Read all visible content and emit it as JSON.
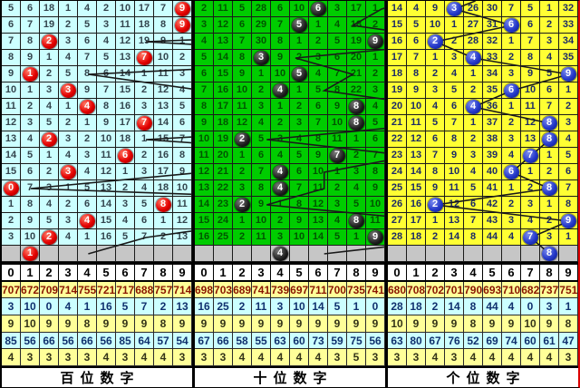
{
  "chart_data": {
    "type": "table",
    "description": "lottery-digit-trend-chart-three-panels",
    "digit_axis": [
      "0",
      "1",
      "2",
      "3",
      "4",
      "5",
      "6",
      "7",
      "8",
      "9"
    ],
    "panels": [
      {
        "id": "hundreds",
        "label": "百位数字",
        "ball_style": "red",
        "colors": {
          "cell_bg": "#ccffff",
          "cell_text": "#33444d"
        },
        "stub_col": 6.7,
        "rows": [
          [
            "5",
            "6",
            "18",
            "1",
            "4",
            "2",
            "10",
            "17",
            "7",
            ""
          ],
          [
            "6",
            "7",
            "19",
            "2",
            "5",
            "3",
            "11",
            "18",
            "8",
            ""
          ],
          [
            "7",
            "8",
            "",
            "3",
            "6",
            "4",
            "12",
            "19",
            "9",
            "1"
          ],
          [
            "8",
            "9",
            "1",
            "4",
            "7",
            "5",
            "13",
            "",
            "10",
            "2"
          ],
          [
            "9",
            "",
            "2",
            "5",
            "8",
            "6",
            "14",
            "1",
            "11",
            "3"
          ],
          [
            "10",
            "1",
            "3",
            "",
            "9",
            "7",
            "15",
            "2",
            "12",
            "4"
          ],
          [
            "11",
            "2",
            "4",
            "1",
            "",
            "8",
            "16",
            "3",
            "13",
            "5"
          ],
          [
            "12",
            "3",
            "5",
            "2",
            "1",
            "9",
            "17",
            "",
            "14",
            "6"
          ],
          [
            "13",
            "4",
            "",
            "3",
            "2",
            "10",
            "18",
            "1",
            "15",
            "7"
          ],
          [
            "14",
            "5",
            "1",
            "4",
            "3",
            "11",
            "",
            "2",
            "16",
            "8"
          ],
          [
            "15",
            "6",
            "2",
            "",
            "4",
            "12",
            "1",
            "3",
            "17",
            "9"
          ],
          [
            "",
            "7",
            "3",
            "1",
            "5",
            "13",
            "2",
            "4",
            "18",
            "10"
          ],
          [
            "1",
            "8",
            "4",
            "2",
            "6",
            "14",
            "3",
            "5",
            "",
            "11"
          ],
          [
            "2",
            "9",
            "5",
            "3",
            "",
            "15",
            "4",
            "6",
            "1",
            "12"
          ],
          [
            "3",
            "10",
            "",
            "4",
            "1",
            "16",
            "5",
            "7",
            "2",
            "13"
          ]
        ],
        "balls": [
          9,
          9,
          2,
          7,
          1,
          3,
          4,
          7,
          2,
          6,
          3,
          0,
          8,
          4,
          2
        ],
        "gray_ball_col": 1,
        "stats": [
          [
            "707",
            "672",
            "709",
            "714",
            "755",
            "721",
            "717",
            "688",
            "757",
            "714"
          ],
          [
            "3",
            "10",
            "0",
            "4",
            "1",
            "16",
            "5",
            "7",
            "2",
            "13"
          ],
          [
            "9",
            "10",
            "9",
            "9",
            "8",
            "9",
            "9",
            "9",
            "8",
            "9"
          ],
          [
            "85",
            "56",
            "66",
            "56",
            "66",
            "56",
            "85",
            "64",
            "57",
            "54"
          ],
          [
            "4",
            "3",
            "3",
            "3",
            "3",
            "4",
            "3",
            "4",
            "4",
            "3"
          ]
        ]
      },
      {
        "id": "tens",
        "label": "十位数字",
        "ball_style": "black",
        "colors": {
          "cell_bg": "#00cc00",
          "cell_text": "#005500"
        },
        "stub_col": 7.5,
        "rows": [
          [
            "2",
            "11",
            "5",
            "28",
            "6",
            "10",
            "",
            "3",
            "17",
            "1"
          ],
          [
            "3",
            "12",
            "6",
            "29",
            "7",
            "",
            "1",
            "4",
            "18",
            "2"
          ],
          [
            "4",
            "13",
            "7",
            "30",
            "8",
            "1",
            "2",
            "5",
            "19",
            ""
          ],
          [
            "5",
            "14",
            "8",
            "",
            "9",
            "2",
            "3",
            "6",
            "20",
            "1"
          ],
          [
            "6",
            "15",
            "9",
            "1",
            "10",
            "",
            "4",
            "7",
            "21",
            "2"
          ],
          [
            "7",
            "16",
            "10",
            "2",
            "",
            "1",
            "5",
            "8",
            "22",
            "3"
          ],
          [
            "8",
            "17",
            "11",
            "3",
            "1",
            "2",
            "6",
            "9",
            "",
            "4"
          ],
          [
            "9",
            "18",
            "12",
            "4",
            "2",
            "3",
            "7",
            "10",
            "",
            "5"
          ],
          [
            "10",
            "19",
            "",
            "5",
            "3",
            "4",
            "8",
            "11",
            "1",
            "6"
          ],
          [
            "11",
            "20",
            "1",
            "6",
            "4",
            "5",
            "9",
            "",
            "2",
            "7"
          ],
          [
            "12",
            "21",
            "2",
            "7",
            "",
            "6",
            "10",
            "1",
            "3",
            "8"
          ],
          [
            "13",
            "22",
            "3",
            "8",
            "",
            "7",
            "11",
            "2",
            "4",
            "9"
          ],
          [
            "14",
            "23",
            "",
            "9",
            "1",
            "8",
            "12",
            "3",
            "5",
            "10"
          ],
          [
            "15",
            "24",
            "1",
            "10",
            "2",
            "9",
            "13",
            "4",
            "",
            "11"
          ],
          [
            "16",
            "25",
            "2",
            "11",
            "3",
            "10",
            "14",
            "5",
            "1",
            ""
          ]
        ],
        "balls": [
          6,
          5,
          9,
          3,
          5,
          4,
          8,
          8,
          2,
          7,
          4,
          4,
          2,
          8,
          9
        ],
        "gray_ball_col": 4,
        "stats": [
          [
            "698",
            "703",
            "689",
            "741",
            "739",
            "697",
            "711",
            "700",
            "735",
            "741"
          ],
          [
            "16",
            "25",
            "2",
            "11",
            "3",
            "10",
            "14",
            "5",
            "1",
            "0"
          ],
          [
            "9",
            "9",
            "9",
            "9",
            "9",
            "9",
            "9",
            "9",
            "9",
            "9"
          ],
          [
            "67",
            "66",
            "58",
            "55",
            "63",
            "60",
            "73",
            "59",
            "75",
            "56"
          ],
          [
            "3",
            "3",
            "4",
            "4",
            "4",
            "4",
            "4",
            "3",
            "5",
            "3"
          ]
        ]
      },
      {
        "id": "units",
        "label": "个位数字",
        "ball_style": "blue",
        "colors": {
          "cell_bg": "#ffff33",
          "cell_text": "#1b2a66"
        },
        "stub_col": 4.6,
        "rows": [
          [
            "14",
            "4",
            "9",
            "",
            "26",
            "30",
            "7",
            "5",
            "1",
            "32"
          ],
          [
            "15",
            "5",
            "10",
            "1",
            "27",
            "31",
            "",
            "6",
            "2",
            "33"
          ],
          [
            "16",
            "6",
            "",
            "2",
            "28",
            "32",
            "1",
            "7",
            "3",
            "34"
          ],
          [
            "17",
            "7",
            "1",
            "3",
            "",
            "33",
            "2",
            "8",
            "4",
            "35"
          ],
          [
            "18",
            "8",
            "2",
            "4",
            "1",
            "34",
            "3",
            "9",
            "5",
            ""
          ],
          [
            "19",
            "9",
            "3",
            "5",
            "2",
            "35",
            "",
            "10",
            "6",
            "1"
          ],
          [
            "20",
            "10",
            "4",
            "6",
            "",
            "36",
            "1",
            "11",
            "7",
            "2"
          ],
          [
            "21",
            "11",
            "5",
            "7",
            "1",
            "37",
            "2",
            "12",
            "",
            "3"
          ],
          [
            "22",
            "12",
            "6",
            "8",
            "2",
            "38",
            "3",
            "13",
            "",
            "4"
          ],
          [
            "23",
            "13",
            "7",
            "9",
            "3",
            "39",
            "4",
            "",
            "1",
            "5"
          ],
          [
            "24",
            "14",
            "8",
            "10",
            "4",
            "40",
            "",
            "1",
            "2",
            "6"
          ],
          [
            "25",
            "15",
            "9",
            "11",
            "5",
            "41",
            "1",
            "2",
            "",
            "7"
          ],
          [
            "26",
            "16",
            "",
            "12",
            "6",
            "42",
            "2",
            "3",
            "1",
            "8"
          ],
          [
            "27",
            "17",
            "1",
            "13",
            "7",
            "43",
            "3",
            "4",
            "2",
            ""
          ],
          [
            "28",
            "18",
            "2",
            "14",
            "8",
            "44",
            "4",
            "",
            "3",
            "1"
          ]
        ],
        "balls": [
          3,
          6,
          2,
          4,
          9,
          6,
          4,
          8,
          8,
          7,
          6,
          8,
          2,
          9,
          7
        ],
        "gray_ball_col": 8,
        "stats": [
          [
            "680",
            "708",
            "702",
            "701",
            "790",
            "693",
            "710",
            "682",
            "737",
            "751"
          ],
          [
            "28",
            "18",
            "2",
            "14",
            "8",
            "44",
            "4",
            "0",
            "3",
            "1"
          ],
          [
            "10",
            "9",
            "9",
            "9",
            "8",
            "9",
            "9",
            "10",
            "9",
            "8"
          ],
          [
            "63",
            "80",
            "67",
            "76",
            "52",
            "69",
            "74",
            "60",
            "61",
            "47"
          ],
          [
            "3",
            "3",
            "4",
            "3",
            "4",
            "4",
            "4",
            "4",
            "4",
            "3"
          ]
        ]
      }
    ]
  },
  "styles": {
    "gray_row_bg": "#c6c6c6",
    "line_color": "#1a1a1a",
    "stats_row_bg": [
      "#ffff99",
      "#ccffff",
      "#ffff99",
      "#ccffff",
      "#ffff99"
    ],
    "stats_row_text": [
      "#8b1500",
      "#10306e",
      "#333318",
      "#10306e",
      "#333318"
    ]
  }
}
